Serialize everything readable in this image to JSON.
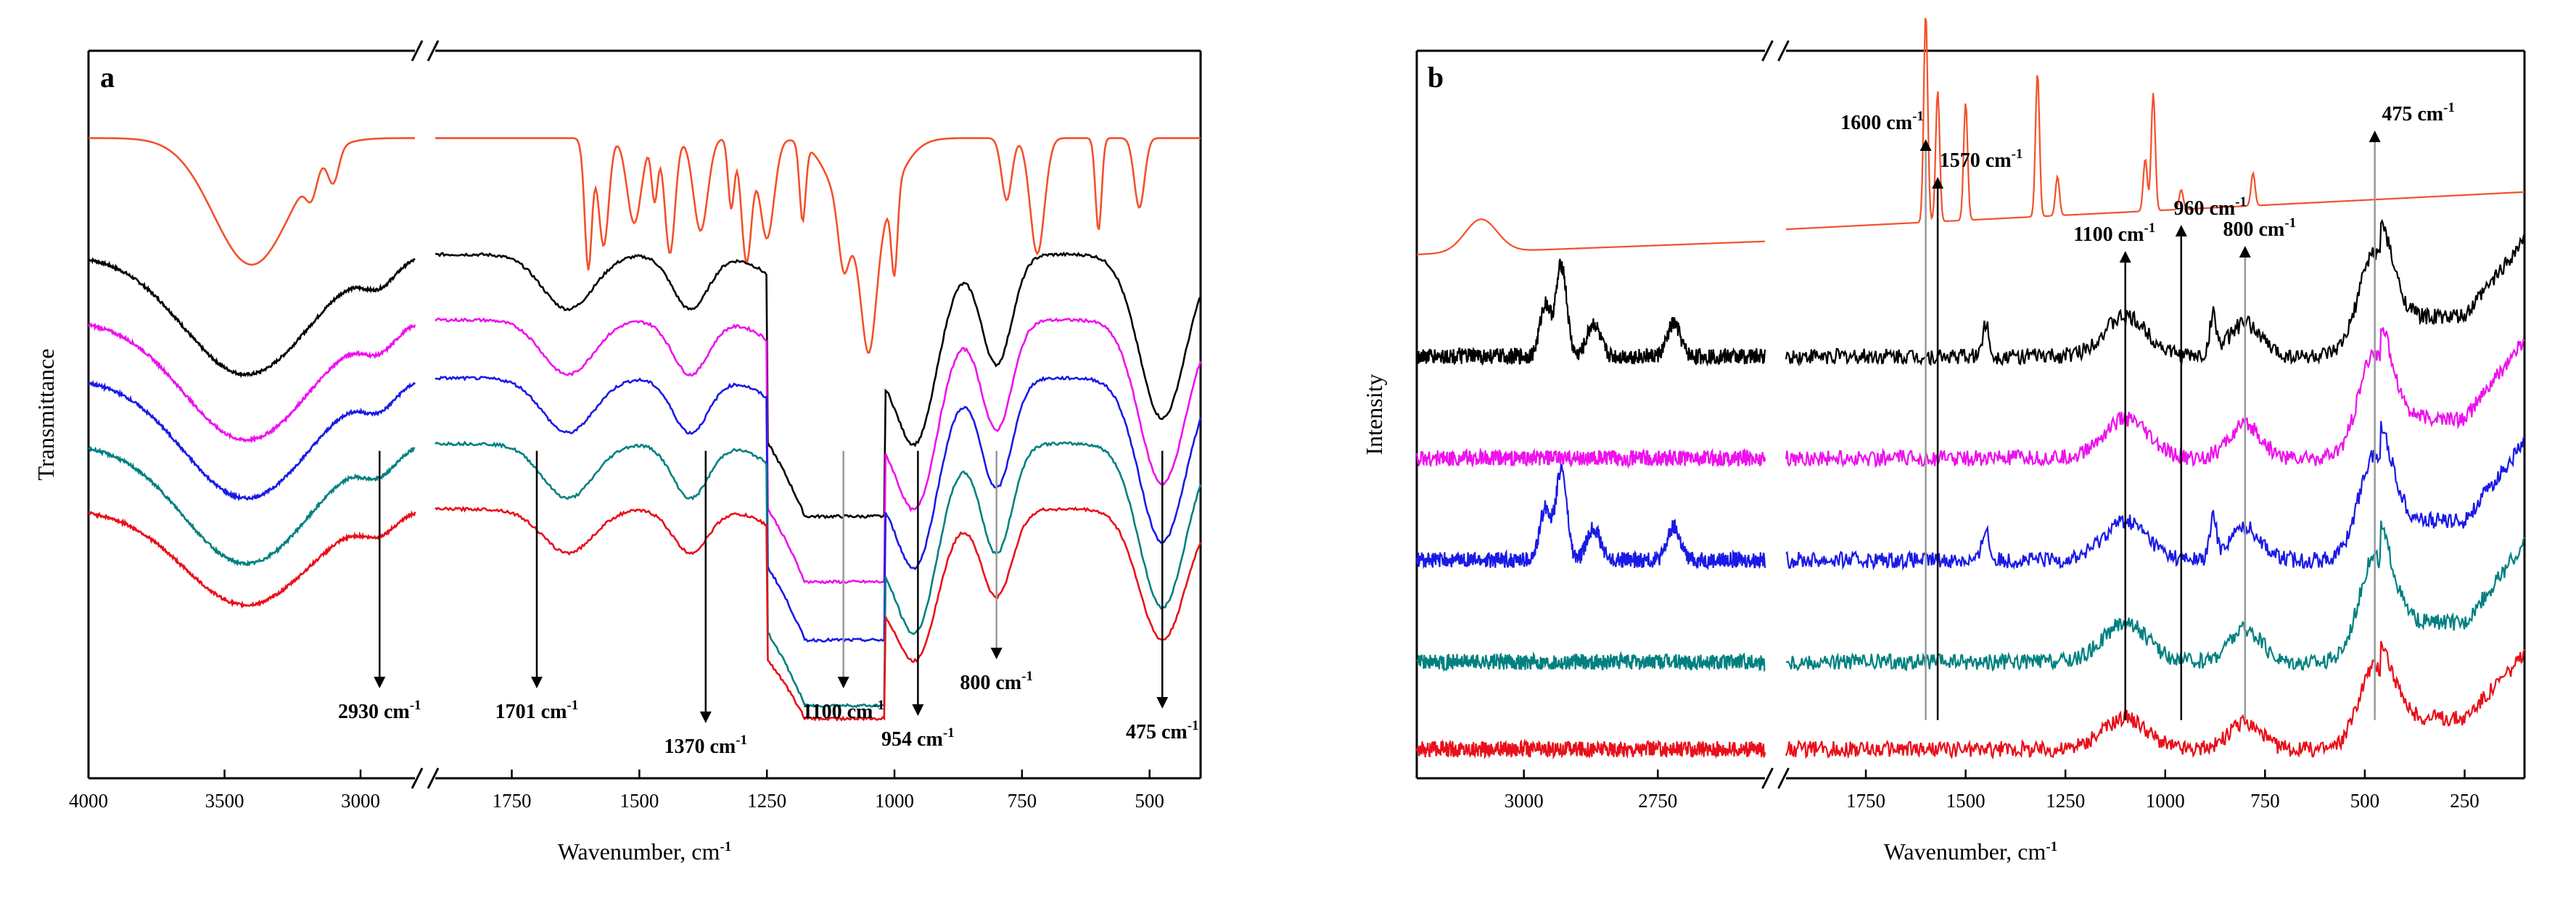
{
  "chart_data": [
    {
      "panel": "a",
      "type": "line",
      "xlabel": "Wavenumber, cm",
      "xlabel_sup": "-1",
      "ylabel": "Transmittance",
      "axis_break": "between 2800 and 1900 cm-1",
      "segments": [
        {
          "xlim": [
            4000,
            2800
          ],
          "ticks": [
            4000,
            3500,
            3000
          ]
        },
        {
          "xlim": [
            1900,
            400
          ],
          "ticks": [
            1750,
            1500,
            1250,
            1000,
            750,
            500
          ]
        }
      ],
      "annotations": [
        {
          "label": "2930 cm",
          "sup": "-1",
          "x": 2930,
          "arrow": "down"
        },
        {
          "label": "1701 cm",
          "sup": "-1",
          "x": 1701,
          "arrow": "down"
        },
        {
          "label": "1370 cm",
          "sup": "-1",
          "x": 1370,
          "arrow": "down"
        },
        {
          "label": "1100 cm",
          "sup": "-1",
          "x": 1100,
          "arrow": "down"
        },
        {
          "label": "954 cm",
          "sup": "-1",
          "x": 954,
          "arrow": "down"
        },
        {
          "label": "800 cm",
          "sup": "-1",
          "x": 800,
          "arrow": "down"
        },
        {
          "label": "475 cm",
          "sup": "-1",
          "x": 475,
          "arrow": "down"
        }
      ],
      "series": [
        {
          "color": "#f4502a",
          "offset": 0.88
        },
        {
          "color": "#000000",
          "offset": 0.72
        },
        {
          "color": "#ee10ee",
          "offset": 0.63
        },
        {
          "color": "#1a1ae6",
          "offset": 0.55
        },
        {
          "color": "#008080",
          "offset": 0.46
        },
        {
          "color": "#e8101a",
          "offset": 0.37
        }
      ]
    },
    {
      "panel": "b",
      "type": "line",
      "xlabel": "Wavenumber, cm",
      "xlabel_sup": "-1",
      "ylabel": "Intensity",
      "axis_break": "between 2550 and 1950 cm-1",
      "segments": [
        {
          "xlim": [
            3200,
            2550
          ],
          "ticks": [
            3000,
            2750
          ]
        },
        {
          "xlim": [
            1950,
            100
          ],
          "ticks": [
            1750,
            1500,
            1250,
            1000,
            750,
            500,
            250
          ]
        }
      ],
      "annotations": [
        {
          "label": "1600 cm",
          "sup": "-1",
          "x": 1600,
          "arrow": "up"
        },
        {
          "label": "1570 cm",
          "sup": "-1",
          "x": 1570,
          "arrow": "up"
        },
        {
          "label": "1100 cm",
          "sup": "-1",
          "x": 1100,
          "arrow": "up"
        },
        {
          "label": "960 cm",
          "sup": "-1",
          "x": 960,
          "arrow": "up"
        },
        {
          "label": "800 cm",
          "sup": "-1",
          "x": 800,
          "arrow": "up"
        },
        {
          "label": "475 cm",
          "sup": "-1",
          "x": 475,
          "arrow": "up"
        }
      ],
      "series": [
        {
          "color": "#f4502a",
          "offset": 0.72
        },
        {
          "color": "#000000",
          "offset": 0.58
        },
        {
          "color": "#ee10ee",
          "offset": 0.44
        },
        {
          "color": "#1a1ae6",
          "offset": 0.3
        },
        {
          "color": "#008080",
          "offset": 0.16
        },
        {
          "color": "#e8101a",
          "offset": 0.04
        }
      ]
    }
  ]
}
